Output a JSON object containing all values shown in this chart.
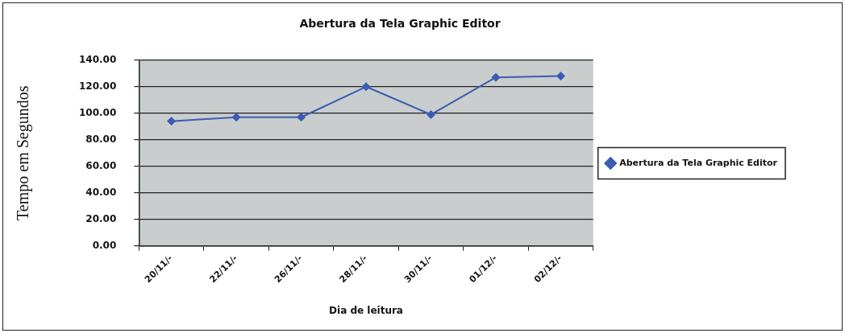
{
  "chart_data": {
    "type": "line",
    "title": "Abertura da Tela Graphic Editor",
    "xlabel": "Dia de leitura",
    "ylabel": "Tempo em Segundos",
    "categories": [
      "20/11/-",
      "22/11/-",
      "26/11/-",
      "28/11/-",
      "30/11/-",
      "01/12/-",
      "02/12/-"
    ],
    "series": [
      {
        "name": "Abertura da Tela Graphic Editor",
        "color": "#3a5cb4",
        "values": [
          94,
          97,
          97,
          120,
          99,
          127,
          128
        ]
      }
    ],
    "ylim": [
      0,
      140
    ],
    "yticks": [
      {
        "value": 0,
        "label": "0.00"
      },
      {
        "value": 20,
        "label": "20.00"
      },
      {
        "value": 40,
        "label": "40.00"
      },
      {
        "value": 60,
        "label": "60.00"
      },
      {
        "value": 80,
        "label": "80.00"
      },
      {
        "value": 100,
        "label": "100.00"
      },
      {
        "value": 120,
        "label": "120.00"
      },
      {
        "value": 140,
        "label": "140.00"
      }
    ],
    "grid": "y",
    "legend": "right",
    "marker": "diamond"
  }
}
